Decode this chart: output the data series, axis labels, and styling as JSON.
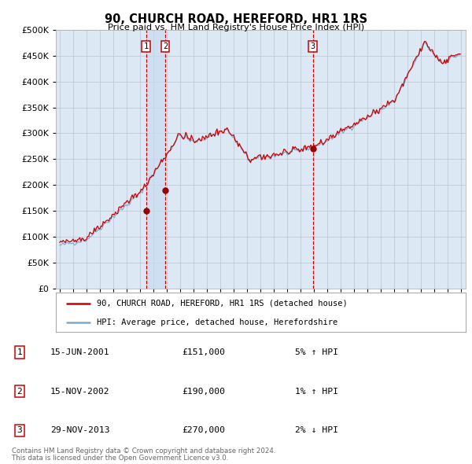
{
  "title": "90, CHURCH ROAD, HEREFORD, HR1 1RS",
  "subtitle": "Price paid vs. HM Land Registry's House Price Index (HPI)",
  "legend_line1": "90, CHURCH ROAD, HEREFORD, HR1 1RS (detached house)",
  "legend_line2": "HPI: Average price, detached house, Herefordshire",
  "transactions": [
    {
      "id": 1,
      "date": "15-JUN-2001",
      "price": 151000,
      "year": 2001.45,
      "rel": "5% ↑ HPI"
    },
    {
      "id": 2,
      "date": "15-NOV-2002",
      "price": 190000,
      "year": 2002.88,
      "rel": "1% ↑ HPI"
    },
    {
      "id": 3,
      "date": "29-NOV-2013",
      "price": 270000,
      "year": 2013.91,
      "rel": "2% ↓ HPI"
    }
  ],
  "footer_line1": "Contains HM Land Registry data © Crown copyright and database right 2024.",
  "footer_line2": "This data is licensed under the Open Government Licence v3.0.",
  "background_color": "#ffffff",
  "plot_bg_color": "#dce9f5",
  "shade_color": "#c8dcf0",
  "grid_color": "#c0c8d8",
  "red_line_color": "#cc0000",
  "blue_line_color": "#7aaacf",
  "transaction_marker_color": "#990000",
  "dashed_line_color": "#cc0000",
  "box_color": "#cc0000",
  "ylim": [
    0,
    500000
  ],
  "yticks": [
    0,
    50000,
    100000,
    150000,
    200000,
    250000,
    300000,
    350000,
    400000,
    450000,
    500000
  ],
  "xstart": 1994.7,
  "xend": 2025.3
}
